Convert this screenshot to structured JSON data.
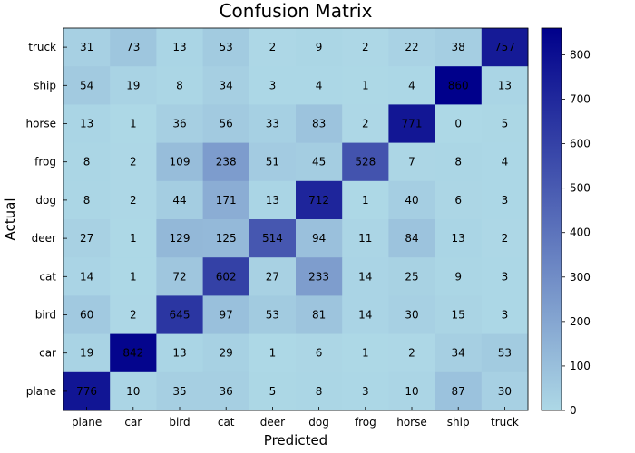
{
  "chart_data": {
    "type": "heatmap",
    "title": "Confusion Matrix",
    "xlabel": "Predicted",
    "ylabel": "Actual",
    "x_categories": [
      "plane",
      "car",
      "bird",
      "cat",
      "deer",
      "dog",
      "frog",
      "horse",
      "ship",
      "truck"
    ],
    "y_categories": [
      "truck",
      "ship",
      "horse",
      "frog",
      "dog",
      "deer",
      "cat",
      "bird",
      "car",
      "plane"
    ],
    "values": [
      [
        31,
        73,
        13,
        53,
        2,
        9,
        2,
        22,
        38,
        757
      ],
      [
        54,
        19,
        8,
        34,
        3,
        4,
        1,
        4,
        860,
        13
      ],
      [
        13,
        1,
        36,
        56,
        33,
        83,
        2,
        771,
        0,
        5
      ],
      [
        8,
        2,
        109,
        238,
        51,
        45,
        528,
        7,
        8,
        4
      ],
      [
        8,
        2,
        44,
        171,
        13,
        712,
        1,
        40,
        6,
        3
      ],
      [
        27,
        1,
        129,
        125,
        514,
        94,
        11,
        84,
        13,
        2
      ],
      [
        14,
        1,
        72,
        602,
        27,
        233,
        14,
        25,
        9,
        3
      ],
      [
        60,
        2,
        645,
        97,
        53,
        81,
        14,
        30,
        15,
        3
      ],
      [
        19,
        842,
        13,
        29,
        1,
        6,
        1,
        2,
        34,
        53
      ],
      [
        776,
        10,
        35,
        36,
        5,
        8,
        3,
        10,
        87,
        30
      ]
    ],
    "colorbar": {
      "min": 0,
      "max": 860,
      "ticks": [
        0,
        100,
        200,
        300,
        400,
        500,
        600,
        700,
        800
      ],
      "color_low": "#add8e6",
      "color_high": "#00008b"
    },
    "grid": false
  }
}
